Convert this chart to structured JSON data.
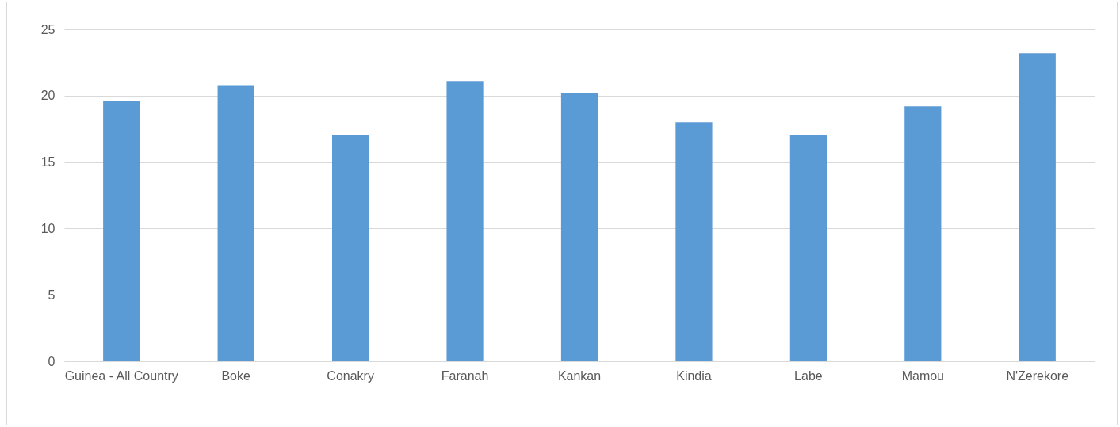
{
  "chart_data": {
    "type": "bar",
    "categories": [
      "Guinea - All Country",
      "Boke",
      "Conakry",
      "Faranah",
      "Kankan",
      "Kindia",
      "Labe",
      "Mamou",
      "N'Zerekore"
    ],
    "values": [
      19.6,
      20.8,
      17.0,
      21.1,
      20.2,
      18.0,
      17.0,
      19.2,
      23.2
    ],
    "color": "#5b9bd5",
    "ylim": [
      0,
      25
    ],
    "yticks": [
      0,
      5,
      10,
      15,
      20,
      25
    ],
    "grid": "y"
  }
}
